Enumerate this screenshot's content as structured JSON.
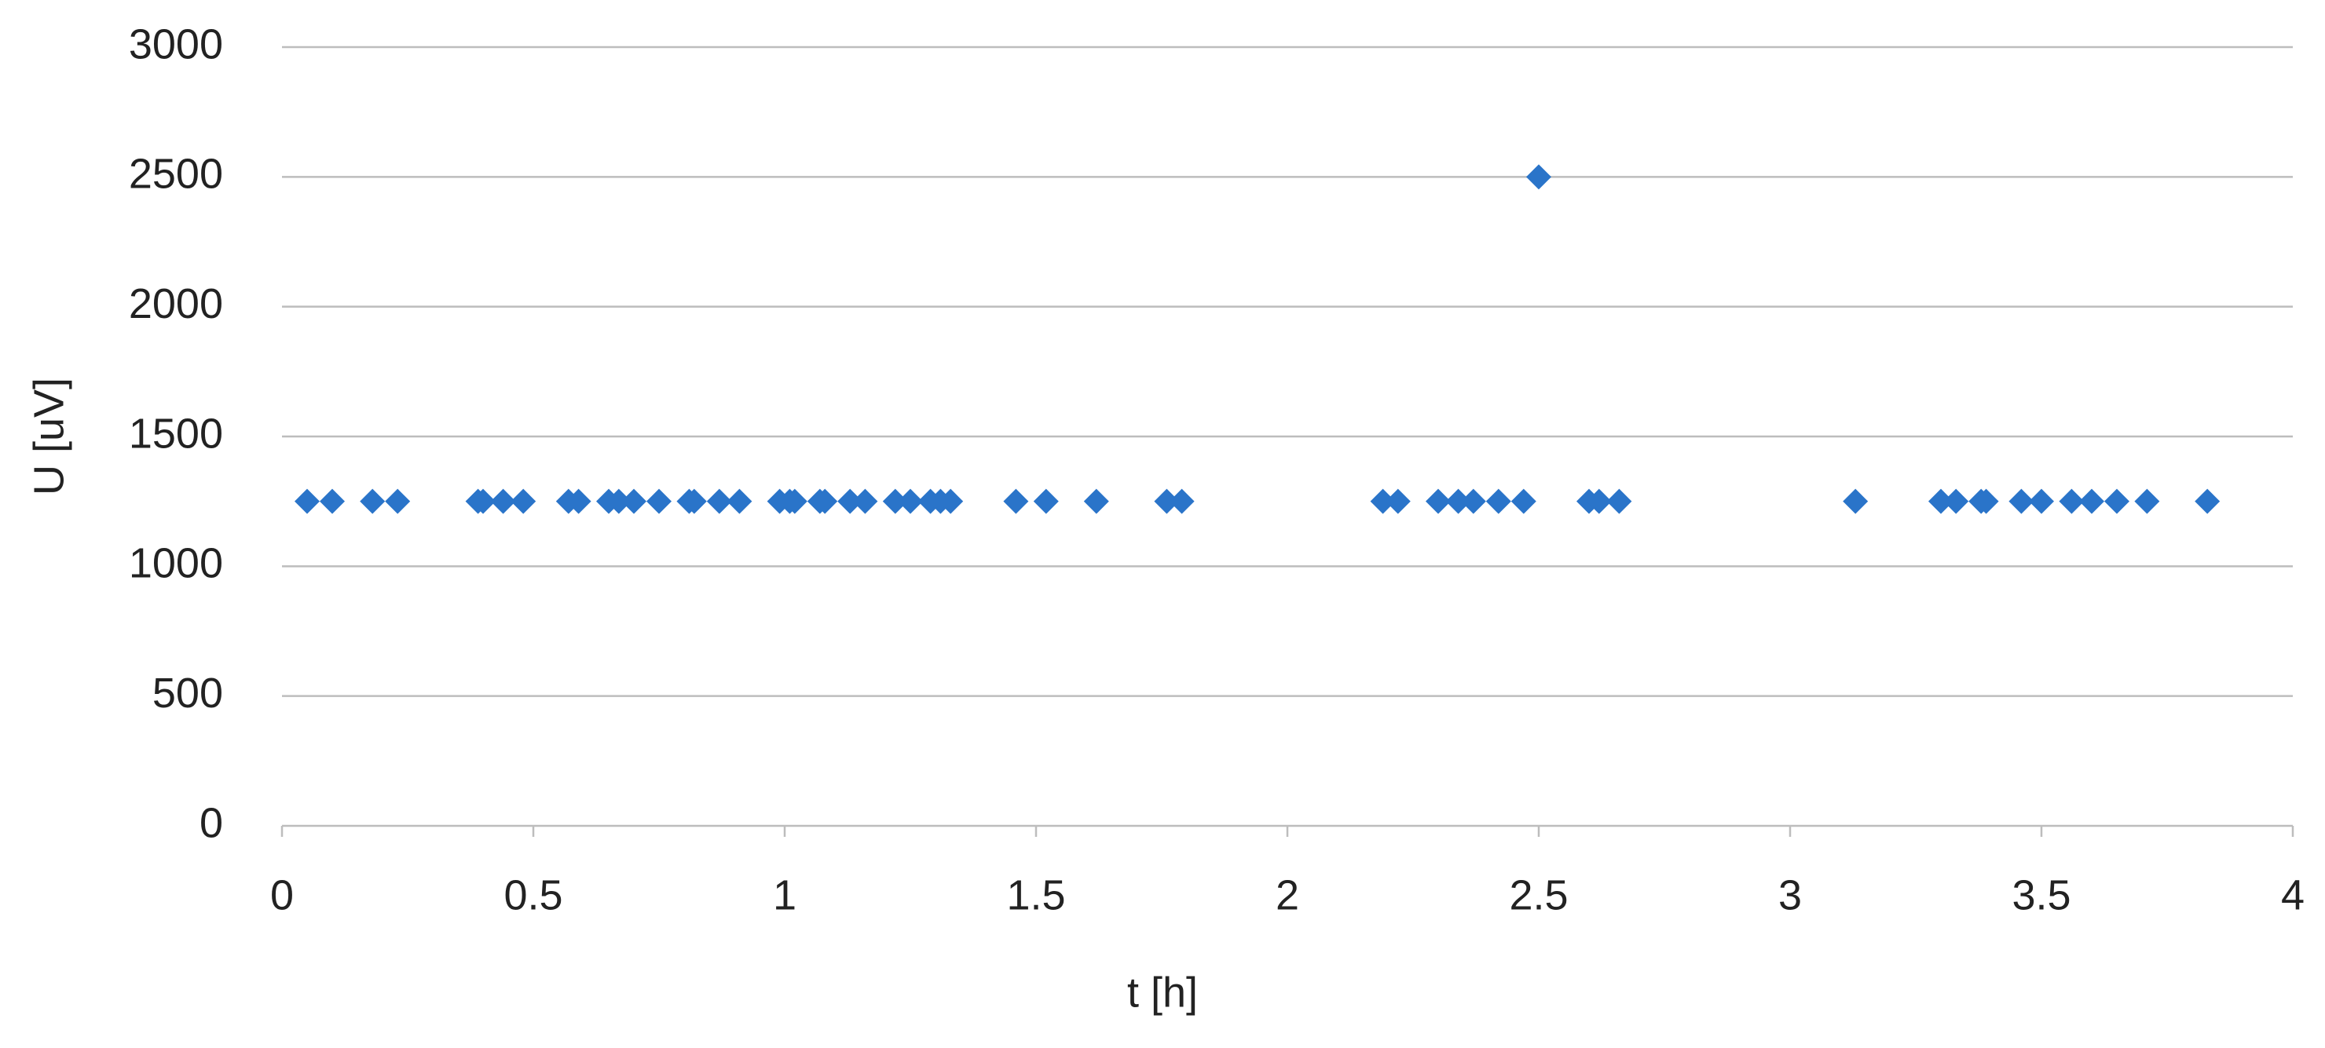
{
  "chart_data": {
    "type": "scatter",
    "xlabel": "t [h]",
    "ylabel": "U [uV]",
    "series": [
      {
        "color": "#2a74c9",
        "x": [
          0.05,
          0.1,
          0.18,
          0.23,
          0.39,
          0.4,
          0.44,
          0.48,
          0.57,
          0.59,
          0.65,
          0.67,
          0.7,
          0.75,
          0.81,
          0.82,
          0.87,
          0.91,
          0.99,
          1.01,
          1.02,
          1.07,
          1.08,
          1.13,
          1.16,
          1.22,
          1.25,
          1.29,
          1.31,
          1.33,
          1.46,
          1.52,
          1.62,
          1.76,
          1.79,
          2.19,
          2.22,
          2.3,
          2.34,
          2.37,
          2.42,
          2.47,
          2.5,
          2.6,
          2.62,
          2.66,
          3.13,
          3.3,
          3.33,
          3.38,
          3.39,
          3.46,
          3.5,
          3.56,
          3.6,
          3.65,
          3.71,
          3.83
        ],
        "values": [
          1250,
          1250,
          1250,
          1250,
          1250,
          1250,
          1250,
          1250,
          1250,
          1250,
          1250,
          1250,
          1250,
          1250,
          1250,
          1250,
          1250,
          1250,
          1250,
          1250,
          1250,
          1250,
          1250,
          1250,
          1250,
          1250,
          1250,
          1250,
          1250,
          1250,
          1250,
          1250,
          1250,
          1250,
          1250,
          1250,
          1250,
          1250,
          1250,
          1250,
          1250,
          1250,
          2500,
          1250,
          1250,
          1250,
          1250,
          1250,
          1250,
          1250,
          1250,
          1250,
          1250,
          1250,
          1250,
          1250,
          1250,
          1250
        ]
      }
    ],
    "xlim": [
      0,
      4
    ],
    "xticks": [
      0,
      0.5,
      1,
      1.5,
      2,
      2.5,
      3,
      3.5,
      4
    ],
    "ylim": [
      0,
      3000
    ],
    "yticks": [
      0,
      500,
      1000,
      1500,
      2000,
      2500,
      3000
    ],
    "grid": true
  }
}
